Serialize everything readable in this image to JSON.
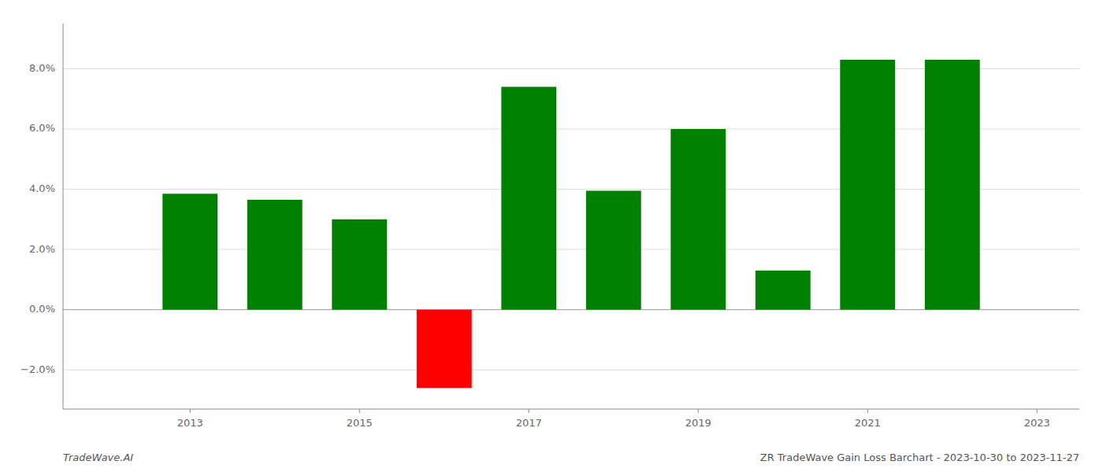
{
  "chart_data": {
    "type": "bar",
    "title": "ZR TradeWave Gain Loss Barchart - 2023-10-30 to 2023-11-27",
    "annotations": [
      "TradeWave.AI"
    ],
    "x": [
      2013,
      2014,
      2015,
      2016,
      2017,
      2018,
      2019,
      2020,
      2021,
      2022
    ],
    "values": [
      0.0385,
      0.0365,
      0.03,
      -0.026,
      0.074,
      0.0395,
      0.06,
      0.013,
      0.083,
      0.083
    ],
    "colors": [
      "#008000",
      "#008000",
      "#008000",
      "#ff0000",
      "#008000",
      "#008000",
      "#008000",
      "#008000",
      "#008000",
      "#008000"
    ],
    "xlim": [
      2011.5,
      2023.5
    ],
    "xticks": [
      2013,
      2015,
      2017,
      2019,
      2021,
      2023
    ],
    "ylim": [
      -0.033,
      0.095
    ],
    "yticks": [
      {
        "value": -0.02,
        "label": "−2.0%"
      },
      {
        "value": 0.0,
        "label": "0.0%"
      },
      {
        "value": 0.02,
        "label": "2.0%"
      },
      {
        "value": 0.04,
        "label": "4.0%"
      },
      {
        "value": 0.06,
        "label": "6.0%"
      },
      {
        "value": 0.08,
        "label": "8.0%"
      }
    ],
    "grid": true
  }
}
